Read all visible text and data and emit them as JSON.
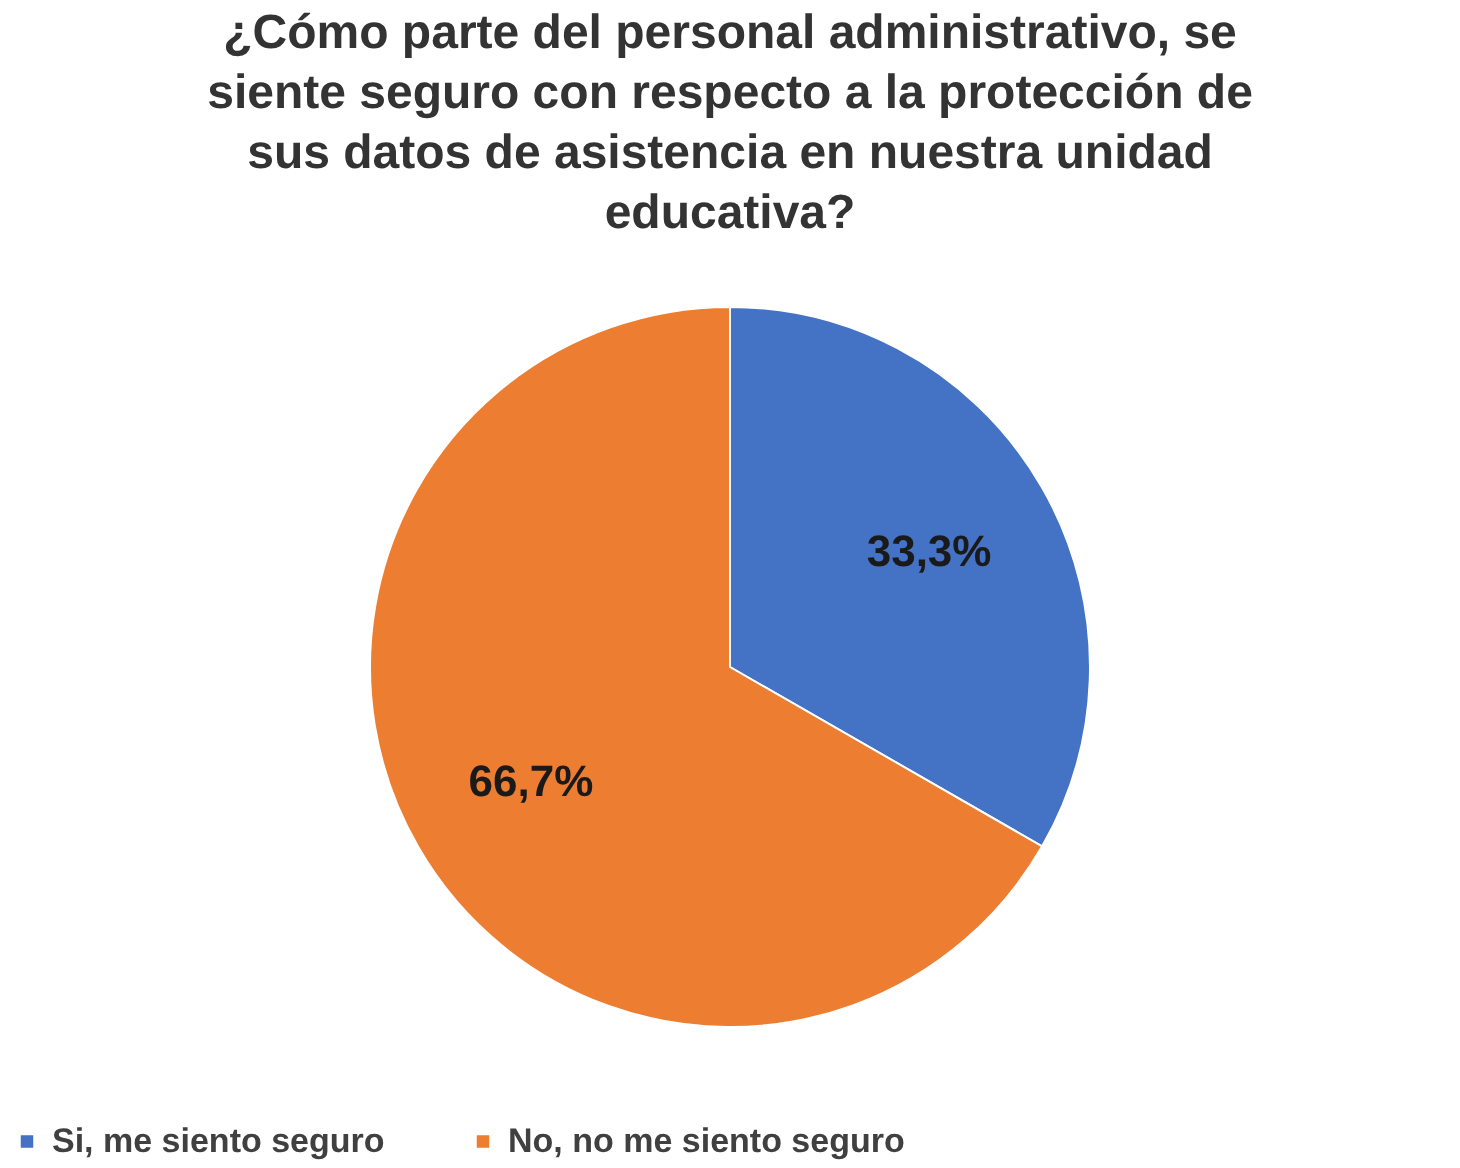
{
  "chart_data": {
    "type": "pie",
    "title": "¿Cómo parte del personal administrativo, se siente seguro con respecto a la protección de sus datos de asistencia en nuestra unidad educativa?",
    "categories": [
      "Si, me siento seguro",
      "No, no me siento seguro"
    ],
    "values": [
      33.3,
      66.7
    ],
    "colors": [
      "#4472c4",
      "#ed7d31"
    ],
    "value_labels": [
      "33,3%",
      "66,7%"
    ],
    "legend": "bottom"
  }
}
